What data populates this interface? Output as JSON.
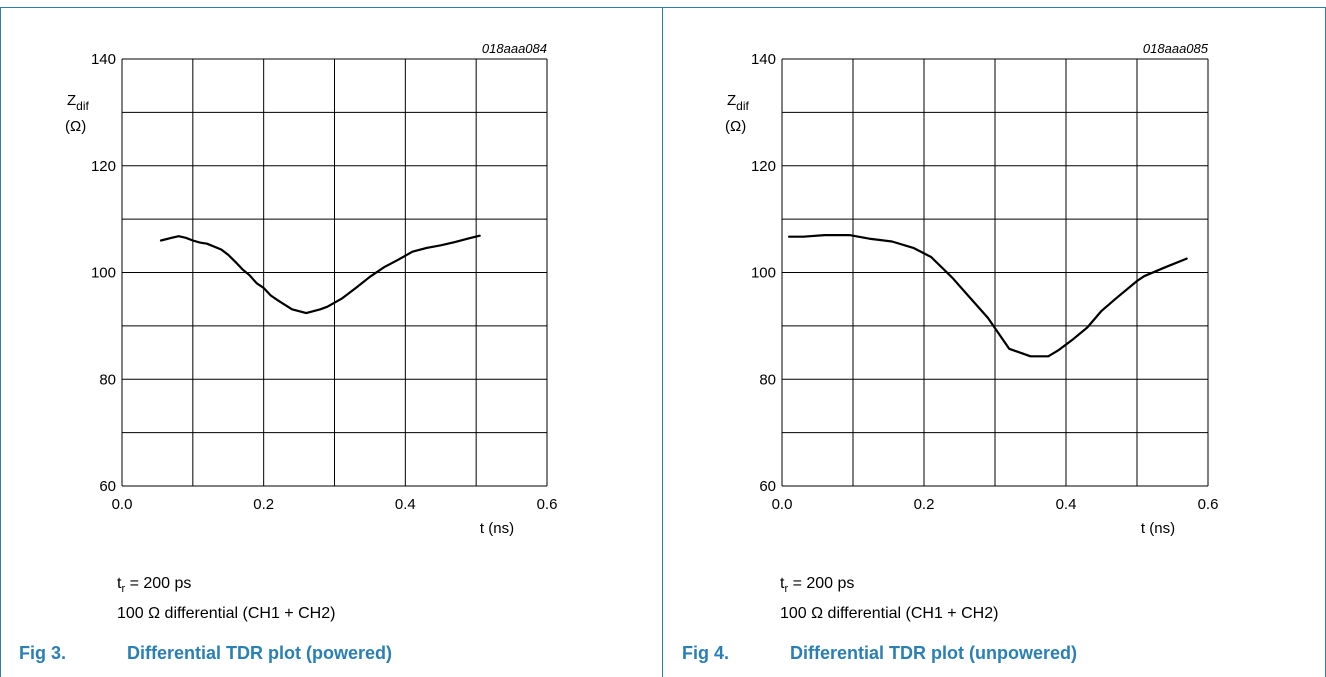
{
  "panels": [
    {
      "figure_number": "Fig 3.",
      "caption": "Differential TDR plot (powered)",
      "note_tr": "= 200 ps",
      "note_tr_symbol": "t",
      "note_tr_sub": "r",
      "note_diff": "100 Ω differential (CH1 + CH2)"
    },
    {
      "figure_number": "Fig 4.",
      "caption": "Differential TDR plot (unpowered)",
      "note_tr": "= 200 ps",
      "note_tr_symbol": "t",
      "note_tr_sub": "r",
      "note_diff": "100 Ω differential (CH1 + CH2)"
    }
  ],
  "chart_data": [
    {
      "type": "line",
      "id_label": "018aaa084",
      "ylabel": "Zdif",
      "ylabel_main": "Z",
      "ylabel_sub": "dif",
      "yunit": "(Ω)",
      "xlabel": "t (ns)",
      "xlim": [
        0.0,
        0.6
      ],
      "ylim": [
        60,
        140
      ],
      "xticks": [
        "0.0",
        "0.2",
        "0.4",
        "0.6"
      ],
      "yticks": [
        "60",
        "80",
        "100",
        "120",
        "140"
      ],
      "grid": true,
      "series": [
        {
          "x": [
            0.055,
            0.07,
            0.08,
            0.09,
            0.1,
            0.11,
            0.12,
            0.14,
            0.15,
            0.16,
            0.17,
            0.18,
            0.19,
            0.2,
            0.21,
            0.22,
            0.24,
            0.26,
            0.28,
            0.29,
            0.31,
            0.33,
            0.35,
            0.37,
            0.39,
            0.41,
            0.43,
            0.45,
            0.47,
            0.49,
            0.505
          ],
          "y": [
            106.0,
            106.5,
            106.8,
            106.5,
            106.0,
            105.6,
            105.4,
            104.3,
            103.3,
            102.0,
            100.6,
            99.5,
            98.0,
            97.1,
            95.7,
            94.8,
            93.1,
            92.4,
            93.1,
            93.6,
            95.1,
            97.1,
            99.2,
            101.0,
            102.4,
            103.9,
            104.6,
            105.1,
            105.7,
            106.4,
            106.9
          ]
        }
      ]
    },
    {
      "type": "line",
      "id_label": "018aaa085",
      "ylabel": "Zdif",
      "ylabel_main": "Z",
      "ylabel_sub": "dif",
      "yunit": "(Ω)",
      "xlabel": "t (ns)",
      "xlim": [
        0.0,
        0.6
      ],
      "ylim": [
        60,
        140
      ],
      "xticks": [
        "0.0",
        "0.2",
        "0.4",
        "0.6"
      ],
      "yticks": [
        "60",
        "80",
        "100",
        "120",
        "140"
      ],
      "grid": true,
      "series": [
        {
          "x": [
            0.01,
            0.03,
            0.06,
            0.095,
            0.125,
            0.155,
            0.185,
            0.21,
            0.24,
            0.26,
            0.29,
            0.305,
            0.32,
            0.35,
            0.375,
            0.39,
            0.41,
            0.43,
            0.45,
            0.47,
            0.5,
            0.51,
            0.54,
            0.57
          ],
          "y": [
            106.7,
            106.7,
            107.0,
            107.0,
            106.3,
            105.8,
            104.6,
            102.9,
            99.0,
            96.0,
            91.5,
            88.6,
            85.7,
            84.3,
            84.3,
            85.5,
            87.5,
            89.7,
            92.8,
            95.1,
            98.4,
            99.3,
            101.0,
            102.6
          ]
        }
      ]
    }
  ]
}
